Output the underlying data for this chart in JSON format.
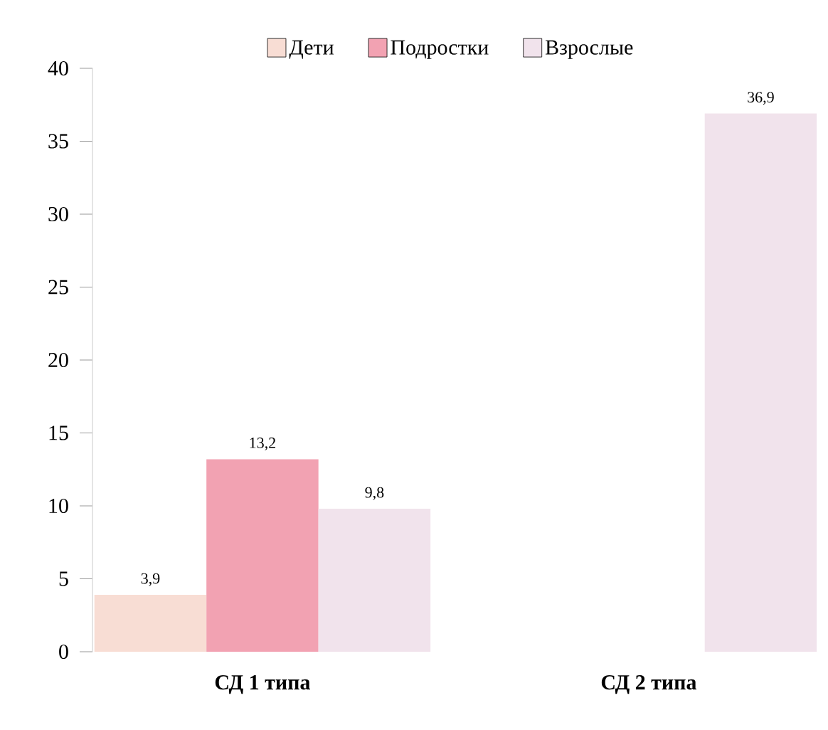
{
  "chart_data": {
    "type": "bar",
    "categories": [
      "СД 1 типа",
      "СД 2 типа"
    ],
    "series": [
      {
        "name": "Дети",
        "color": "#f8ddd4",
        "values": [
          3.9,
          null
        ],
        "value_labels": [
          "3,9",
          null
        ]
      },
      {
        "name": "Подростки",
        "color": "#f2a2b2",
        "values": [
          13.2,
          null
        ],
        "value_labels": [
          "13,2",
          null
        ]
      },
      {
        "name": "Взрослые",
        "color": "#f1e3ec",
        "values": [
          9.8,
          36.9
        ],
        "value_labels": [
          "9,8",
          "36,9"
        ]
      }
    ],
    "ylim": [
      0,
      40
    ],
    "yticks": [
      0,
      5,
      10,
      15,
      20,
      25,
      30,
      35,
      40
    ],
    "grid": false,
    "legend": "top"
  }
}
